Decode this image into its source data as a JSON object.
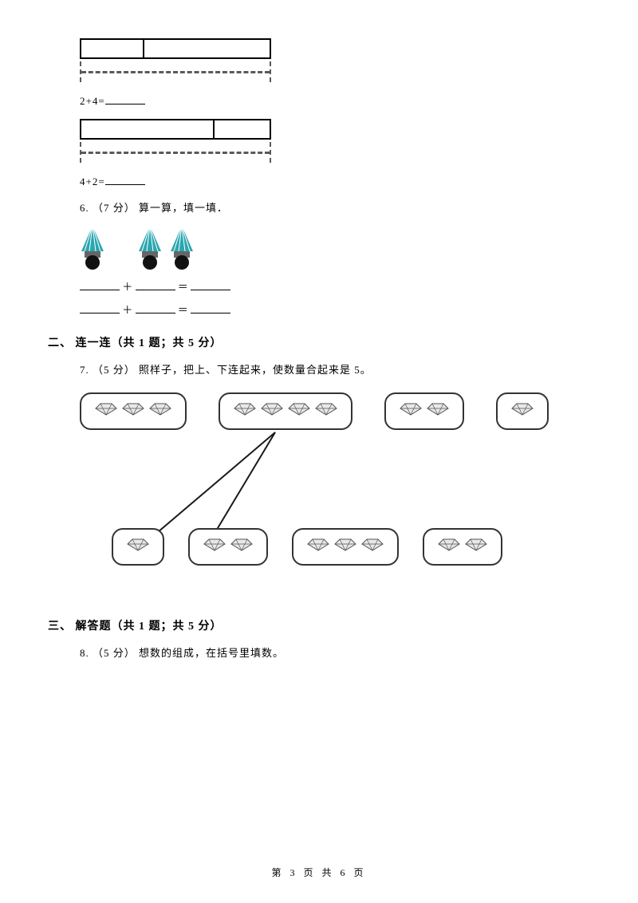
{
  "bar1": {
    "segs": [
      80,
      160
    ],
    "eq_lhs": "2+4="
  },
  "bar2": {
    "segs": [
      170,
      70
    ],
    "eq_lhs": "4+2="
  },
  "q6": {
    "label": "6.",
    "points": "（7 分）",
    "text": " 算一算，填一填．"
  },
  "q6_blank_sep": "＋",
  "q6_blank_eq": "＝",
  "sec2": {
    "num": "二、",
    "title": " 连一连（共 1 题；共 5 分）"
  },
  "q7": {
    "label": "7.",
    "points": "（5 分）",
    "text": " 照样子，把上、下连起来，使数量合起来是 5。"
  },
  "q7_top_counts": [
    3,
    4,
    2,
    1
  ],
  "q7_bottom_counts": [
    1,
    2,
    3,
    2
  ],
  "sec3": {
    "num": "三、",
    "title": " 解答题（共 1 题；共 5 分）"
  },
  "q8": {
    "label": "8.",
    "points": "（5 分）",
    "text": " 想数的组成，在括号里填数。"
  },
  "footer": "第 3 页 共 6 页",
  "colors": {
    "shuttle_top1": "#2aa7b0",
    "shuttle_top2": "#6fc7cc",
    "shuttle_band": "#666666",
    "shuttle_ball": "#111111",
    "gem_stroke": "#444444",
    "gem_fill": "#dedede",
    "line_stroke": "#1a1a1a"
  }
}
